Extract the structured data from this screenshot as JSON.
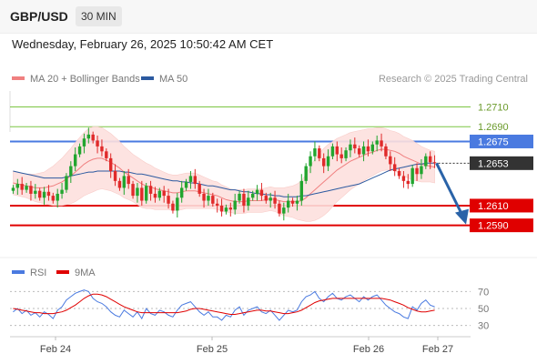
{
  "header": {
    "pair": "GBP/USD",
    "timeframe": "30 MIN",
    "datetime": "Wednesday, February 26, 2025 10:50:42 AM CET"
  },
  "legend": {
    "ma20_label": "MA 20 + Bollinger Bands",
    "ma50_label": "MA 50",
    "credit": "Research © 2025 Trading Central",
    "rsi_label": "RSI",
    "ma9_label": "9MA"
  },
  "colors": {
    "ma20": "#f08080",
    "bollinger_fill": "#fde0de",
    "ma50": "#2c5aa0",
    "bull_candle": "#22a52f",
    "bear_candle": "#e02a2a",
    "resistance": "#7cc542",
    "pivot": "#4a7ae0",
    "support": "#e00000",
    "arrow": "#2a63a8",
    "rsi": "#4a7ae0",
    "rsi_ma": "#e00000"
  },
  "chart_data": [
    {
      "type": "candlestick",
      "title": "GBP/USD 30 MIN",
      "x_ticks": [
        "Feb 24",
        "Feb 25",
        "Feb 26",
        "Feb 27"
      ],
      "ylim": [
        1.2562,
        1.2728
      ],
      "current_price": "1.2653",
      "levels": [
        {
          "label": "1.2710",
          "value": 1.271,
          "kind": "resistance"
        },
        {
          "label": "1.2690",
          "value": 1.269,
          "kind": "resistance"
        },
        {
          "label": "1.2675",
          "value": 1.2675,
          "kind": "pivot"
        },
        {
          "label": "1.2610",
          "value": 1.261,
          "kind": "support"
        },
        {
          "label": "1.2590",
          "value": 1.259,
          "kind": "support"
        }
      ],
      "forecast_arrow": {
        "from": 1.2653,
        "to": 1.259
      },
      "closes": [
        1.2628,
        1.2632,
        1.2626,
        1.263,
        1.2622,
        1.2625,
        1.2618,
        1.2624,
        1.262,
        1.2615,
        1.2622,
        1.2626,
        1.264,
        1.265,
        1.2662,
        1.267,
        1.2678,
        1.2682,
        1.2676,
        1.267,
        1.2665,
        1.2658,
        1.2645,
        1.2635,
        1.2628,
        1.264,
        1.2632,
        1.262,
        1.2628,
        1.2615,
        1.263,
        1.2622,
        1.2618,
        1.2625,
        1.262,
        1.2612,
        1.2605,
        1.2618,
        1.2628,
        1.2634,
        1.264,
        1.2632,
        1.2622,
        1.2615,
        1.262,
        1.2612,
        1.261,
        1.2604,
        1.2608,
        1.2606,
        1.2615,
        1.2622,
        1.261,
        1.2618,
        1.2622,
        1.2626,
        1.262,
        1.2615,
        1.2618,
        1.2612,
        1.2602,
        1.2608,
        1.2615,
        1.2612,
        1.2615,
        1.2635,
        1.265,
        1.266,
        1.2668,
        1.2658,
        1.265,
        1.266,
        1.267,
        1.2662,
        1.2658,
        1.2666,
        1.2672,
        1.2668,
        1.2662,
        1.267,
        1.2665,
        1.2672,
        1.2676,
        1.267,
        1.266,
        1.2652,
        1.2645,
        1.264,
        1.2635,
        1.2632,
        1.2648,
        1.2642,
        1.265,
        1.266,
        1.2654,
        1.2653
      ],
      "ma20": [
        1.2633,
        1.2632,
        1.2631,
        1.263,
        1.2629,
        1.2628,
        1.2628,
        1.2628,
        1.2629,
        1.263,
        1.2632,
        1.2634,
        1.2637,
        1.264,
        1.2644,
        1.2648,
        1.2652,
        1.2655,
        1.2657,
        1.2658,
        1.2658,
        1.2656,
        1.2654,
        1.2651,
        1.2648,
        1.2644,
        1.2641,
        1.2638,
        1.2635,
        1.2632,
        1.263,
        1.2629,
        1.2627,
        1.2626,
        1.2625,
        1.2624,
        1.2623,
        1.2623,
        1.2624,
        1.2625,
        1.2625,
        1.2625,
        1.2624,
        1.2623,
        1.2622,
        1.2621,
        1.262,
        1.2618,
        1.2616,
        1.2615,
        1.2614,
        1.2614,
        1.2614,
        1.2615,
        1.2615,
        1.2615,
        1.2615,
        1.2616,
        1.2617,
        1.2616,
        1.2615,
        1.2614,
        1.2614,
        1.2614,
        1.2614,
        1.2615,
        1.2618,
        1.2622,
        1.2626,
        1.263,
        1.2634,
        1.2638,
        1.2642,
        1.2646,
        1.2649,
        1.2652,
        1.2655,
        1.2657,
        1.2659,
        1.2661,
        1.2663,
        1.2664,
        1.2666,
        1.2667,
        1.2667,
        1.2666,
        1.2665,
        1.2663,
        1.266,
        1.2658,
        1.2656,
        1.2654,
        1.2652,
        1.2651,
        1.265,
        1.2649
      ],
      "ma50": [
        1.2645,
        1.2644,
        1.2643,
        1.2642,
        1.2641,
        1.264,
        1.2639,
        1.2638,
        1.2638,
        1.2638,
        1.2638,
        1.2638,
        1.2639,
        1.264,
        1.2641,
        1.2642,
        1.2643,
        1.2644,
        1.2644,
        1.2645,
        1.2645,
        1.2645,
        1.2645,
        1.2645,
        1.2645,
        1.2644,
        1.2644,
        1.2643,
        1.2642,
        1.2642,
        1.2641,
        1.264,
        1.2639,
        1.2638,
        1.2637,
        1.2636,
        1.2635,
        1.2635,
        1.2634,
        1.2634,
        1.2633,
        1.2633,
        1.2632,
        1.2631,
        1.263,
        1.263,
        1.2629,
        1.2628,
        1.2627,
        1.2626,
        1.2626,
        1.2625,
        1.2624,
        1.2624,
        1.2623,
        1.2622,
        1.2622,
        1.2621,
        1.2621,
        1.262,
        1.262,
        1.2619,
        1.2619,
        1.2619,
        1.2619,
        1.262,
        1.262,
        1.2621,
        1.2622,
        1.2623,
        1.2624,
        1.2625,
        1.2626,
        1.2627,
        1.2628,
        1.2629,
        1.263,
        1.2631,
        1.2632,
        1.2634,
        1.2636,
        1.2638,
        1.264,
        1.2642,
        1.2644,
        1.2646,
        1.2647,
        1.2648,
        1.2649,
        1.265,
        1.2651,
        1.2652,
        1.2652,
        1.2653,
        1.2653,
        1.2653
      ],
      "boll_width": [
        0.0012,
        0.0012,
        0.0012,
        0.0012,
        0.0013,
        0.0014,
        0.0015,
        0.0016,
        0.0018,
        0.002,
        0.0022,
        0.0024,
        0.0026,
        0.0028,
        0.003,
        0.0031,
        0.0032,
        0.0033,
        0.0033,
        0.0032,
        0.0031,
        0.003,
        0.0029,
        0.0028,
        0.0027,
        0.0026,
        0.0025,
        0.0024,
        0.0024,
        0.0024,
        0.0023,
        0.0022,
        0.0021,
        0.002,
        0.0019,
        0.0018,
        0.0018,
        0.0018,
        0.0018,
        0.0018,
        0.0018,
        0.0018,
        0.0017,
        0.0016,
        0.0015,
        0.0014,
        0.0014,
        0.0013,
        0.0013,
        0.0012,
        0.0012,
        0.0012,
        0.0012,
        0.0012,
        0.0012,
        0.0012,
        0.0012,
        0.0012,
        0.0012,
        0.0012,
        0.0013,
        0.0014,
        0.0015,
        0.0016,
        0.0018,
        0.002,
        0.0024,
        0.0028,
        0.0031,
        0.0033,
        0.0034,
        0.0034,
        0.0033,
        0.0032,
        0.0031,
        0.003,
        0.0029,
        0.0028,
        0.0027,
        0.0026,
        0.0025,
        0.0024,
        0.0023,
        0.0022,
        0.0021,
        0.002,
        0.002,
        0.002,
        0.002,
        0.002,
        0.002,
        0.0019,
        0.0018,
        0.0017,
        0.0016,
        0.0016
      ]
    },
    {
      "type": "line",
      "title": "RSI",
      "ylim": [
        22,
        78
      ],
      "y_ticks": [
        "70",
        "50",
        "30"
      ],
      "rsi": [
        46,
        50,
        44,
        48,
        42,
        45,
        40,
        46,
        43,
        38,
        48,
        52,
        60,
        64,
        68,
        70,
        72,
        70,
        62,
        58,
        56,
        52,
        46,
        42,
        40,
        48,
        44,
        40,
        46,
        38,
        50,
        44,
        42,
        48,
        46,
        42,
        40,
        48,
        54,
        56,
        58,
        52,
        46,
        42,
        46,
        40,
        40,
        36,
        42,
        40,
        48,
        52,
        42,
        48,
        50,
        52,
        46,
        44,
        48,
        42,
        36,
        42,
        48,
        46,
        48,
        58,
        64,
        66,
        70,
        62,
        58,
        64,
        68,
        62,
        60,
        64,
        66,
        62,
        58,
        64,
        60,
        64,
        66,
        60,
        54,
        50,
        46,
        44,
        40,
        38,
        52,
        48,
        56,
        60,
        54,
        52
      ],
      "rsi_ma": [
        50,
        49,
        48,
        47,
        46,
        45,
        45,
        44,
        44,
        44,
        45,
        46,
        48,
        51,
        54,
        58,
        62,
        65,
        67,
        67,
        66,
        64,
        61,
        58,
        55,
        52,
        50,
        48,
        46,
        45,
        45,
        45,
        45,
        45,
        45,
        45,
        45,
        45,
        46,
        47,
        49,
        50,
        50,
        49,
        48,
        47,
        46,
        45,
        44,
        43,
        43,
        44,
        45,
        46,
        47,
        48,
        48,
        47,
        47,
        46,
        45,
        44,
        44,
        45,
        46,
        48,
        51,
        54,
        57,
        59,
        60,
        61,
        62,
        62,
        62,
        62,
        62,
        62,
        62,
        62,
        62,
        62,
        62,
        62,
        61,
        60,
        58,
        56,
        54,
        51,
        49,
        47,
        46,
        46,
        47,
        48
      ]
    }
  ]
}
